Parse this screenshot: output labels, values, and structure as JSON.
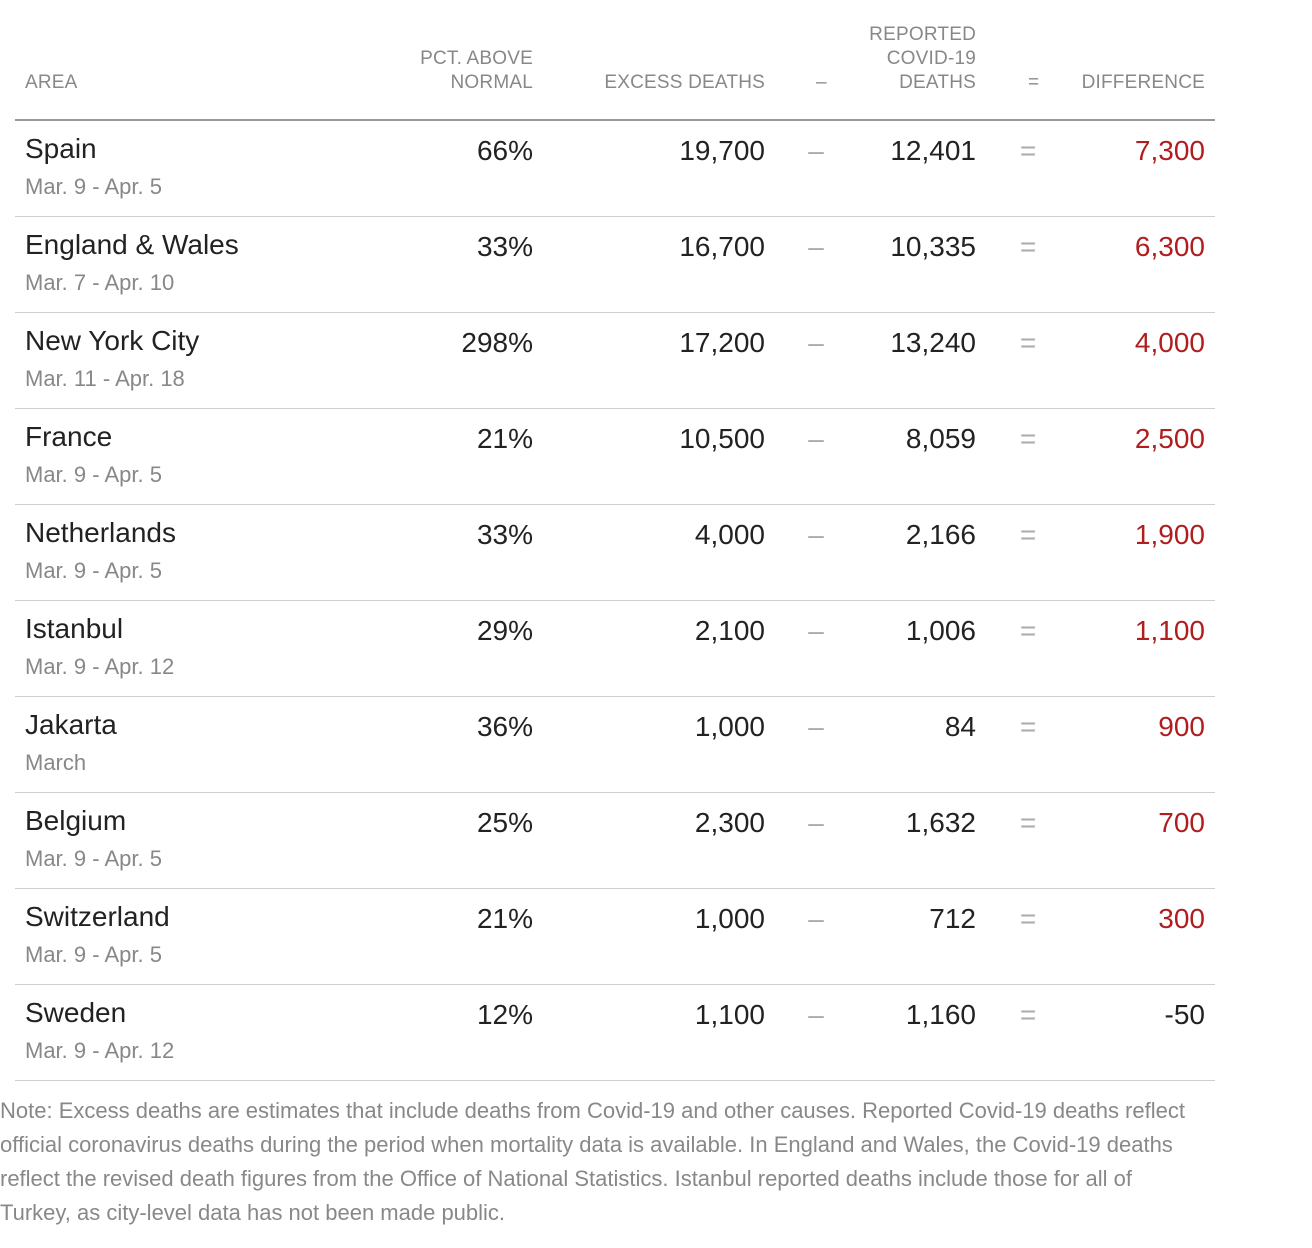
{
  "headers": {
    "area": "AREA",
    "pct_line1": "PCT. ABOVE",
    "pct_line2": "NORMAL",
    "excess": "EXCESS DEATHS",
    "minus": "–",
    "reported_line1": "REPORTED",
    "reported_line2": "COVID-19",
    "reported_line3": "DEATHS",
    "equals": "=",
    "difference": "DIFFERENCE"
  },
  "colors": {
    "positive_difference": "#b01e1e",
    "muted_text": "#888888"
  },
  "chart_data": {
    "type": "table",
    "columns": [
      "Area",
      "Pct. above normal",
      "Excess deaths",
      "Reported Covid-19 deaths",
      "Difference"
    ],
    "rows": [
      {
        "area": "Spain",
        "dates": "Mar. 9 - Apr. 5",
        "pct": "66%",
        "excess": "19,700",
        "reported": "12,401",
        "difference": "7,300",
        "diff_value": 7300
      },
      {
        "area": "England & Wales",
        "dates": "Mar. 7 - Apr. 10",
        "pct": "33%",
        "excess": "16,700",
        "reported": "10,335",
        "difference": "6,300",
        "diff_value": 6300
      },
      {
        "area": "New York City",
        "dates": "Mar. 11 - Apr. 18",
        "pct": "298%",
        "excess": "17,200",
        "reported": "13,240",
        "difference": "4,000",
        "diff_value": 4000
      },
      {
        "area": "France",
        "dates": "Mar. 9 - Apr. 5",
        "pct": "21%",
        "excess": "10,500",
        "reported": "8,059",
        "difference": "2,500",
        "diff_value": 2500
      },
      {
        "area": "Netherlands",
        "dates": "Mar. 9 - Apr. 5",
        "pct": "33%",
        "excess": "4,000",
        "reported": "2,166",
        "difference": "1,900",
        "diff_value": 1900
      },
      {
        "area": "Istanbul",
        "dates": "Mar. 9 - Apr. 12",
        "pct": "29%",
        "excess": "2,100",
        "reported": "1,006",
        "difference": "1,100",
        "diff_value": 1100
      },
      {
        "area": "Jakarta",
        "dates": "March",
        "pct": "36%",
        "excess": "1,000",
        "reported": "84",
        "difference": "900",
        "diff_value": 900
      },
      {
        "area": "Belgium",
        "dates": "Mar. 9 - Apr. 5",
        "pct": "25%",
        "excess": "2,300",
        "reported": "1,632",
        "difference": "700",
        "diff_value": 700
      },
      {
        "area": "Switzerland",
        "dates": "Mar. 9 - Apr. 5",
        "pct": "21%",
        "excess": "1,000",
        "reported": "712",
        "difference": "300",
        "diff_value": 300
      },
      {
        "area": "Sweden",
        "dates": "Mar. 9 - Apr. 12",
        "pct": "12%",
        "excess": "1,100",
        "reported": "1,160",
        "difference": "-50",
        "diff_value": -50
      }
    ]
  },
  "note": "Note: Excess deaths are estimates that include deaths from Covid-19 and other causes. Reported Covid-19 deaths reflect official coronavirus deaths during the period when mortality data is available. In England and Wales, the Covid-19 deaths reflect the revised death figures from the Office of National Statistics. Istanbul reported deaths include those for all of Turkey, as city-level data has not been made public."
}
